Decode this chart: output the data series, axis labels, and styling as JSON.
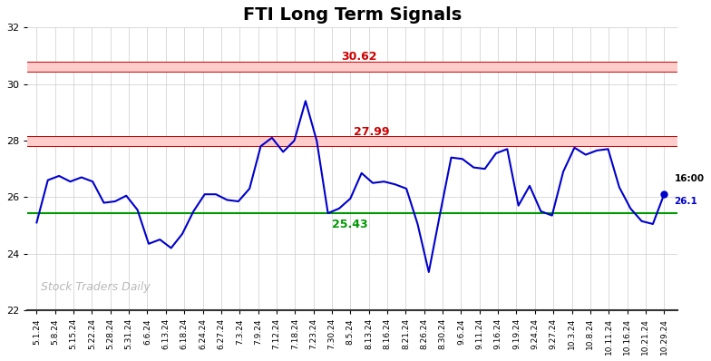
{
  "title": "FTI Long Term Signals",
  "x_labels": [
    "5.1.24",
    "5.8.24",
    "5.15.24",
    "5.22.24",
    "5.28.24",
    "5.31.24",
    "6.6.24",
    "6.13.24",
    "6.18.24",
    "6.24.24",
    "6.27.24",
    "7.3.24",
    "7.9.24",
    "7.12.24",
    "7.18.24",
    "7.23.24",
    "7.30.24",
    "8.5.24",
    "8.13.24",
    "8.16.24",
    "8.21.24",
    "8.26.24",
    "8.30.24",
    "9.6.24",
    "9.11.24",
    "9.16.24",
    "9.19.24",
    "9.24.24",
    "9.27.24",
    "10.3.24",
    "10.8.24",
    "10.11.24",
    "10.16.24",
    "10.21.24",
    "10.29.24"
  ],
  "prices": [
    25.1,
    26.6,
    26.75,
    26.55,
    26.7,
    26.55,
    25.8,
    25.85,
    26.05,
    25.55,
    24.35,
    24.5,
    24.2,
    24.7,
    25.5,
    26.1,
    26.1,
    25.9,
    25.85,
    26.3,
    27.8,
    28.1,
    27.6,
    28.0,
    29.4,
    27.99,
    25.43,
    25.6,
    25.95,
    26.85,
    26.5,
    26.55,
    26.45,
    26.3,
    25.05,
    23.35,
    25.4,
    27.4,
    27.35,
    27.05,
    27.0,
    27.55,
    27.7,
    25.7,
    26.4,
    25.5,
    25.35,
    26.9,
    27.75,
    27.5,
    27.65,
    27.7,
    26.35,
    25.6,
    25.15,
    25.05,
    26.1
  ],
  "line_color": "#0000cc",
  "red_upper_line": 30.62,
  "red_upper_band_half": 0.18,
  "red_lower_line": 27.99,
  "red_lower_band_half": 0.18,
  "green_line": 25.43,
  "red_band_color": "#ffcccc",
  "red_line_color": "#cc0000",
  "green_line_color": "#009900",
  "ylim_min": 22,
  "ylim_max": 32,
  "yticks": [
    22,
    24,
    26,
    28,
    30,
    32
  ],
  "watermark": "Stock Traders Daily",
  "last_label": "16:00",
  "last_value": "26.1",
  "annotation_upper": "30.62",
  "annotation_lower": "27.99",
  "annotation_green": "25.43",
  "bg_color": "#ffffff",
  "plot_bg_color": "#ffffff",
  "title_fontsize": 14,
  "figwidth": 7.84,
  "figheight": 3.98,
  "dpi": 100
}
